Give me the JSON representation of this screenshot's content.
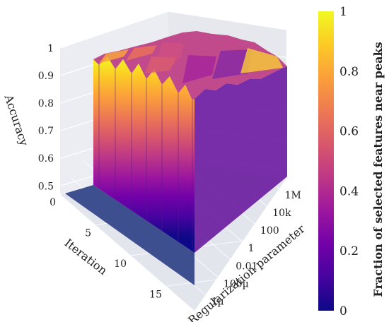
{
  "chart_data": {
    "type": "surface3d",
    "axes": {
      "x": {
        "label": "Regularization parameter",
        "ticks": [
          "1µ",
          "100µ",
          "0.01",
          "1",
          "100",
          "10k",
          "1M"
        ],
        "scale": "log"
      },
      "y": {
        "label": "Iteration",
        "ticks": [
          "0",
          "5",
          "10",
          "15"
        ],
        "range": [
          0,
          19
        ]
      },
      "z": {
        "label": "Accuracy",
        "ticks": [
          "0.5",
          "0.6",
          "0.7",
          "0.8",
          "0.9",
          "1"
        ],
        "range": [
          0.47,
          1.0
        ]
      }
    },
    "colorbar": {
      "label": "Fraction of selected features near peaks",
      "ticks": [
        "0",
        "0.2",
        "0.4",
        "0.6",
        "0.8",
        "1"
      ],
      "range": [
        0,
        1
      ],
      "colorscale": [
        "#0d0887",
        "#46039f",
        "#7201a8",
        "#9c179e",
        "#bd3786",
        "#d8576b",
        "#ed7953",
        "#fb9f3a",
        "#fdca26",
        "#f0f921"
      ]
    },
    "surface": {
      "iteration_0_accuracy": 0.5,
      "iterations_1_to_19_accuracy_range": [
        0.93,
        1.0
      ],
      "top_color_value_range": [
        0.25,
        0.9
      ],
      "wall_color": "vertical gradient from iteration 0 (low fraction) to top (high fraction)"
    }
  },
  "colors": {
    "background": "#ffffff",
    "pane": "#ebedf2",
    "grid": "#ffffff",
    "floor": "#3b4d8e"
  }
}
